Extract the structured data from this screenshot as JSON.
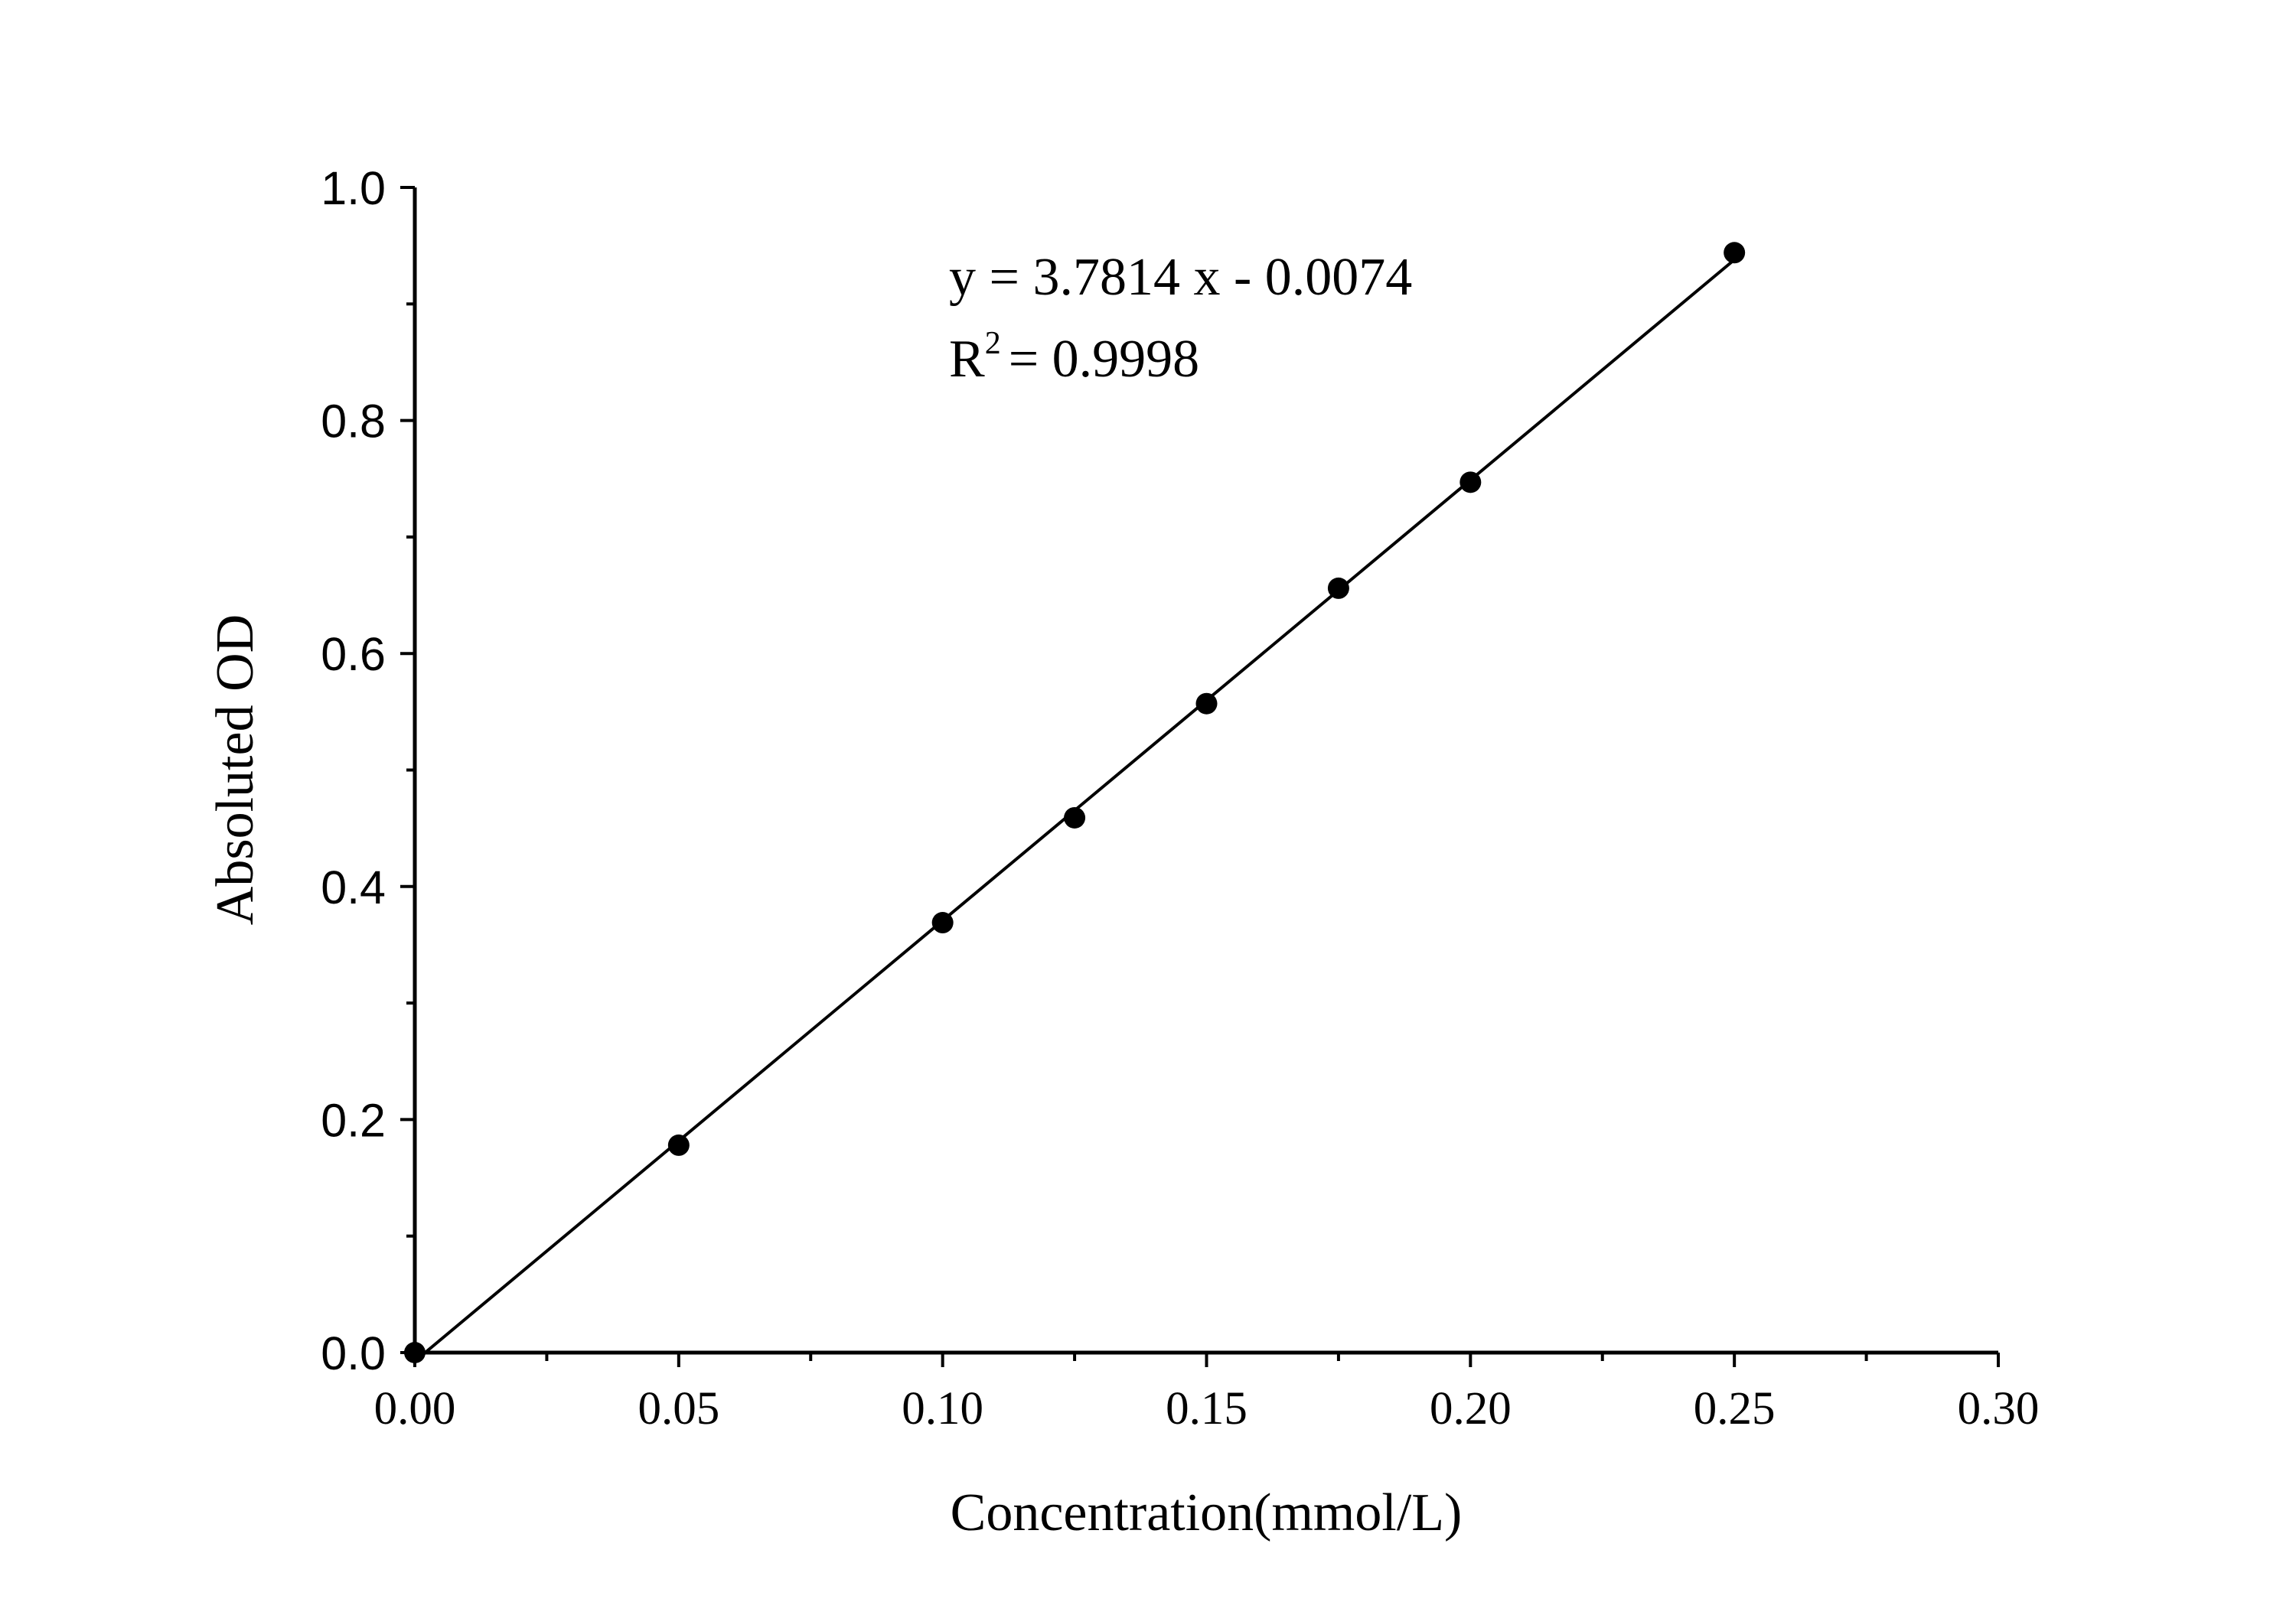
{
  "chart_data": {
    "type": "scatter",
    "title": "",
    "xlabel": "Concentration(mmol/L)",
    "ylabel": "Absoluted OD",
    "xlim": [
      0.0,
      0.3
    ],
    "ylim": [
      0.0,
      1.0
    ],
    "x_ticks": [
      "0.00",
      "0.05",
      "0.10",
      "0.15",
      "0.20",
      "0.25",
      "0.30"
    ],
    "y_ticks": [
      "0.0",
      "0.2",
      "0.4",
      "0.6",
      "0.8",
      "1.0"
    ],
    "grid": false,
    "series": [
      {
        "x": [
          0.0,
          0.05,
          0.1,
          0.125,
          0.15,
          0.175,
          0.2,
          0.25
        ],
        "y": [
          0.0,
          0.178,
          0.369,
          0.459,
          0.557,
          0.656,
          0.747,
          0.944
        ]
      }
    ],
    "fit": {
      "slope": 3.7814,
      "intercept": -0.0074
    },
    "annotations": {
      "equation": "y = 3.7814 x - 0.0074",
      "r2_prefix": "R",
      "r2_sup": "2",
      "r2_value": "= 0.9998"
    },
    "colors": {
      "marker": "#000000",
      "line": "#000000",
      "axis": "#000000"
    }
  }
}
